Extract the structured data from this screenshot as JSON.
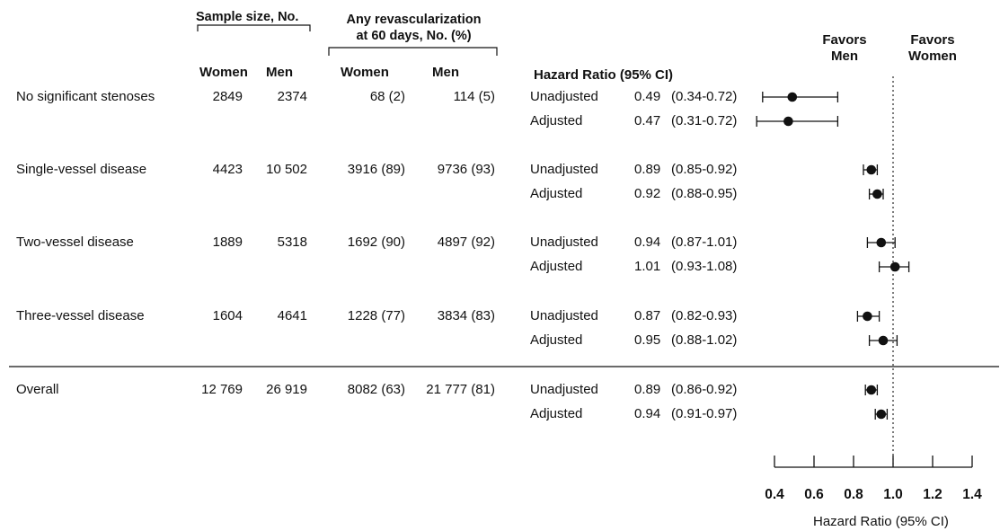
{
  "headers": {
    "sample_size": "Sample size, No.",
    "revasc_line1": "Any revascularization",
    "revasc_line2": "at 60 days, No. (%)",
    "women": "Women",
    "men": "Men",
    "hazard_ratio": "Hazard Ratio (95% CI)",
    "favors_men_1": "Favors",
    "favors_men_2": "Men",
    "favors_women_1": "Favors",
    "favors_women_2": "Women"
  },
  "chart_data": {
    "type": "forest",
    "xlabel": "Hazard Ratio (95% CI)",
    "xlim": [
      0.4,
      1.4
    ],
    "xticks": [
      "0.4",
      "0.6",
      "0.8",
      "1.0",
      "1.2",
      "1.4"
    ],
    "reference_line": 1.0,
    "groups": [
      {
        "label": "No significant stenoses",
        "sample_women": "2849",
        "sample_men": "2374",
        "revasc_women": "68 (2)",
        "revasc_men": "114 (5)",
        "rows": [
          {
            "model": "Unadjusted",
            "hr": "0.49",
            "ci": "(0.34-0.72)",
            "est": 0.49,
            "lo": 0.34,
            "hi": 0.72
          },
          {
            "model": "Adjusted",
            "hr": "0.47",
            "ci": "(0.31-0.72)",
            "est": 0.47,
            "lo": 0.31,
            "hi": 0.72
          }
        ]
      },
      {
        "label": "Single-vessel disease",
        "sample_women": "4423",
        "sample_men": "10 502",
        "revasc_women": "3916 (89)",
        "revasc_men": "9736 (93)",
        "rows": [
          {
            "model": "Unadjusted",
            "hr": "0.89",
            "ci": "(0.85-0.92)",
            "est": 0.89,
            "lo": 0.85,
            "hi": 0.92
          },
          {
            "model": "Adjusted",
            "hr": "0.92",
            "ci": "(0.88-0.95)",
            "est": 0.92,
            "lo": 0.88,
            "hi": 0.95
          }
        ]
      },
      {
        "label": "Two-vessel disease",
        "sample_women": "1889",
        "sample_men": "5318",
        "revasc_women": "1692 (90)",
        "revasc_men": "4897 (92)",
        "rows": [
          {
            "model": "Unadjusted",
            "hr": "0.94",
            "ci": "(0.87-1.01)",
            "est": 0.94,
            "lo": 0.87,
            "hi": 1.01
          },
          {
            "model": "Adjusted",
            "hr": "1.01",
            "ci": "(0.93-1.08)",
            "est": 1.01,
            "lo": 0.93,
            "hi": 1.08
          }
        ]
      },
      {
        "label": "Three-vessel disease",
        "sample_women": "1604",
        "sample_men": "4641",
        "revasc_women": "1228 (77)",
        "revasc_men": "3834 (83)",
        "rows": [
          {
            "model": "Unadjusted",
            "hr": "0.87",
            "ci": "(0.82-0.93)",
            "est": 0.87,
            "lo": 0.82,
            "hi": 0.93
          },
          {
            "model": "Adjusted",
            "hr": "0.95",
            "ci": "(0.88-1.02)",
            "est": 0.95,
            "lo": 0.88,
            "hi": 1.02
          }
        ]
      },
      {
        "label": "Overall",
        "sample_women": "12 769",
        "sample_men": "26 919",
        "revasc_women": "8082 (63)",
        "revasc_men": "21 777 (81)",
        "rows": [
          {
            "model": "Unadjusted",
            "hr": "0.89",
            "ci": "(0.86-0.92)",
            "est": 0.89,
            "lo": 0.86,
            "hi": 0.92
          },
          {
            "model": "Adjusted",
            "hr": "0.94",
            "ci": "(0.91-0.97)",
            "est": 0.94,
            "lo": 0.91,
            "hi": 0.97
          }
        ]
      }
    ]
  }
}
